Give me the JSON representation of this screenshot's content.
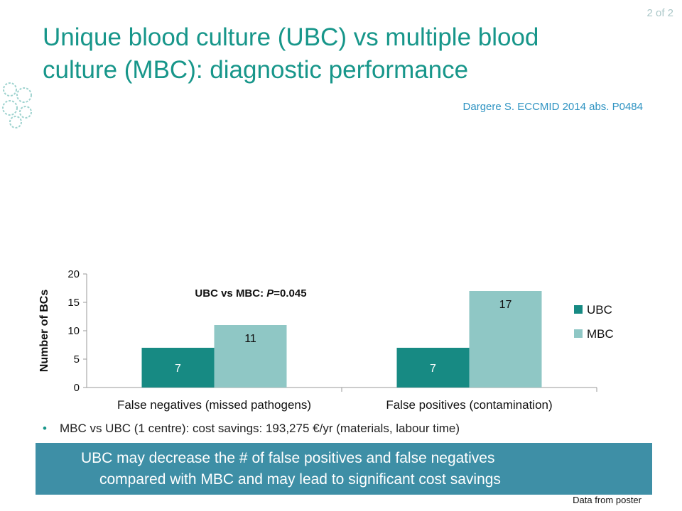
{
  "page_counter": "2 of 2",
  "title_line1": "Unique blood culture (UBC) vs multiple blood",
  "title_line2": "culture (MBC): diagnostic performance",
  "citation": "Dargere S. ECCMID 2014 abs. P0484",
  "bullet": "MBC vs UBC (1 centre): cost savings: 193,275 €/yr (materials, labour time)",
  "banner_line1": "UBC may decrease the # of false positives and false negatives",
  "banner_line2": "compared with MBC and may lead to significant cost savings",
  "footnote": "Data from poster",
  "colors": {
    "ubc": "#178a83",
    "mbc": "#8fc7c5",
    "title": "#17968a"
  },
  "icons": {
    "logo": "virus-cluster-logo-icon"
  },
  "chart_data": {
    "type": "bar",
    "categories": [
      "False negatives (missed pathogens)",
      "False positives (contamination)"
    ],
    "series": [
      {
        "name": "UBC",
        "values": [
          7,
          7
        ]
      },
      {
        "name": "MBC",
        "values": [
          11,
          17
        ]
      }
    ],
    "ylabel": "Number of BCs",
    "ylim": [
      0,
      20
    ],
    "yticks": [
      0,
      5,
      10,
      15,
      20
    ],
    "annotation_prefix": "UBC vs MBC: ",
    "annotation_p": "P",
    "annotation_value": "=0.045",
    "legend": "right",
    "grid": false
  }
}
